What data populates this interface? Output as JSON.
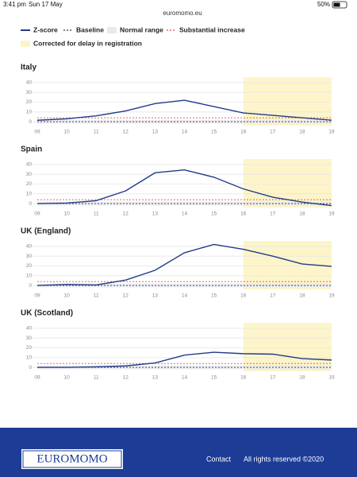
{
  "status_bar": {
    "time": "3:41 pm",
    "date": "Sun 17 May",
    "url": "euromomo.eu",
    "battery": "50%"
  },
  "legend": [
    {
      "name": "Z-score",
      "color": "#1f3c88",
      "style": "solid"
    },
    {
      "name": "Baseline",
      "color": "#333333",
      "style": "dotted"
    },
    {
      "name": "Normal range",
      "color": "#e6eaf0",
      "style": "box"
    },
    {
      "name": "Substantial increase",
      "color": "#d9534f",
      "style": "dotted"
    },
    {
      "name": "Corrected for delay in registration",
      "color": "#fdf5c9",
      "style": "box"
    }
  ],
  "chart_data": [
    {
      "type": "line",
      "title": "Italy",
      "categories": [
        "09",
        "10",
        "11",
        "12",
        "13",
        "14",
        "15",
        "16",
        "17",
        "18",
        "19"
      ],
      "values": [
        1.5,
        3,
        6,
        11,
        18.5,
        22,
        15.5,
        9,
        6.5,
        4,
        1.5
      ],
      "baseline": 0,
      "normal_range": [
        -2,
        2
      ],
      "substantial_increase": 4,
      "shaded_categories": [
        "16",
        "19"
      ],
      "ylim": [
        -4,
        44
      ],
      "yticks": [
        0,
        10,
        20,
        30,
        40
      ],
      "grid": true
    },
    {
      "type": "line",
      "title": "Spain",
      "categories": [
        "09",
        "10",
        "11",
        "12",
        "13",
        "14",
        "15",
        "16",
        "17",
        "18",
        "19"
      ],
      "values": [
        0,
        0.5,
        3,
        13,
        31.5,
        34.5,
        27,
        15,
        6.5,
        1.5,
        -2
      ],
      "baseline": 0,
      "normal_range": [
        -2,
        2
      ],
      "substantial_increase": 4,
      "shaded_categories": [
        "16",
        "19"
      ],
      "ylim": [
        -4,
        44
      ],
      "yticks": [
        0,
        10,
        20,
        30,
        40
      ],
      "grid": true
    },
    {
      "type": "line",
      "title": "UK (England)",
      "categories": [
        "09",
        "10",
        "11",
        "12",
        "13",
        "14",
        "15",
        "16",
        "17",
        "18",
        "19"
      ],
      "values": [
        0,
        1,
        0.5,
        5.5,
        15.5,
        33.5,
        42,
        37,
        30,
        22,
        19.5
      ],
      "baseline": 0,
      "normal_range": [
        -2,
        2
      ],
      "substantial_increase": 4,
      "shaded_categories": [
        "16",
        "19"
      ],
      "ylim": [
        -4,
        44
      ],
      "yticks": [
        0,
        10,
        20,
        30,
        40
      ],
      "grid": true
    },
    {
      "type": "line",
      "title": "UK (Scotland)",
      "categories": [
        "09",
        "10",
        "11",
        "12",
        "13",
        "14",
        "15",
        "16",
        "17",
        "18",
        "19"
      ],
      "values": [
        0,
        0,
        0.5,
        1.5,
        4.5,
        12.5,
        15.5,
        14,
        13.5,
        9,
        7.5
      ],
      "baseline": 0,
      "normal_range": [
        -2,
        2
      ],
      "substantial_increase": 4,
      "shaded_categories": [
        "16",
        "19"
      ],
      "ylim": [
        -4,
        44
      ],
      "yticks": [
        0,
        10,
        20,
        30,
        40
      ],
      "grid": true
    }
  ],
  "footer": {
    "logo": "EUROMOMO",
    "links": [
      "Contact",
      "All rights reserved ©2020"
    ]
  }
}
